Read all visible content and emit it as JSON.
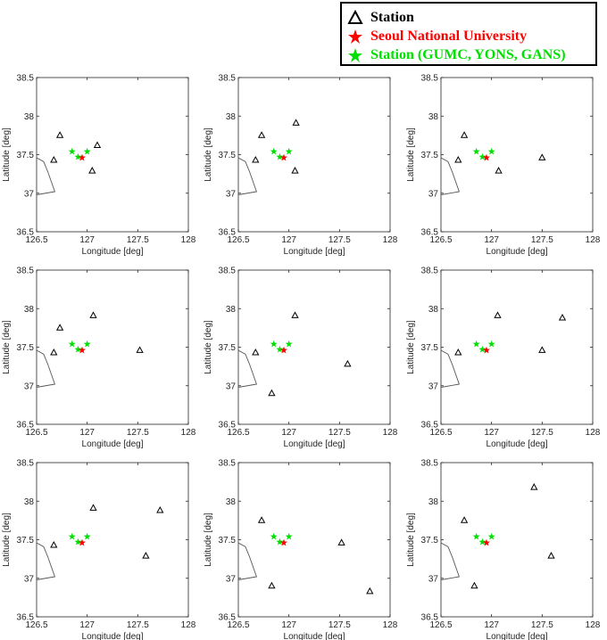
{
  "legend": [
    {
      "label": "Station",
      "marker": "triangle",
      "color": "#000000"
    },
    {
      "label": "Seoul National University",
      "marker": "star",
      "color": "#ff0000"
    },
    {
      "label": "Station (GUMC, YONS, GANS)",
      "marker": "star",
      "color": "#00e000"
    }
  ],
  "chart_data": [
    {
      "type": "scatter",
      "xlabel": "Longitude [deg]",
      "ylabel": "Latitude [deg]",
      "xlim": [
        126.5,
        128
      ],
      "ylim": [
        36.5,
        38.5
      ],
      "xticks": [
        "126.5",
        "127",
        "127.5",
        "128"
      ],
      "yticks": [
        "36.5",
        "37",
        "37.5",
        "38",
        "38.5"
      ],
      "stations": [
        [
          126.73,
          37.75
        ],
        [
          126.67,
          37.43
        ],
        [
          127.1,
          37.62
        ],
        [
          127.05,
          37.29
        ]
      ],
      "snu": [
        [
          126.95,
          37.46
        ]
      ],
      "green": [
        [
          126.85,
          37.54
        ],
        [
          126.91,
          37.47
        ],
        [
          127.0,
          37.54
        ]
      ]
    },
    {
      "type": "scatter",
      "xlabel": "Longitude [deg]",
      "ylabel": "Latitude [deg]",
      "xlim": [
        126.5,
        128
      ],
      "ylim": [
        36.5,
        38.5
      ],
      "xticks": [
        "126.5",
        "127",
        "127.5",
        "128"
      ],
      "yticks": [
        "36.5",
        "37",
        "37.5",
        "38",
        "38.5"
      ],
      "stations": [
        [
          126.73,
          37.75
        ],
        [
          126.67,
          37.43
        ],
        [
          127.07,
          37.91
        ],
        [
          127.06,
          37.29
        ]
      ],
      "snu": [
        [
          126.95,
          37.46
        ]
      ],
      "green": [
        [
          126.85,
          37.54
        ],
        [
          126.91,
          37.47
        ],
        [
          127.0,
          37.54
        ]
      ]
    },
    {
      "type": "scatter",
      "xlabel": "Longitude [deg]",
      "ylabel": "Latitude [deg]",
      "xlim": [
        126.5,
        128
      ],
      "ylim": [
        36.5,
        38.5
      ],
      "xticks": [
        "126.5",
        "127",
        "127.5",
        "128"
      ],
      "yticks": [
        "36.5",
        "37",
        "37.5",
        "38",
        "38.5"
      ],
      "stations": [
        [
          126.73,
          37.75
        ],
        [
          126.67,
          37.43
        ],
        [
          127.07,
          37.29
        ],
        [
          127.5,
          37.46
        ]
      ],
      "snu": [
        [
          126.95,
          37.46
        ]
      ],
      "green": [
        [
          126.85,
          37.54
        ],
        [
          126.91,
          37.47
        ],
        [
          127.0,
          37.54
        ]
      ]
    },
    {
      "type": "scatter",
      "xlabel": "Longitude [deg]",
      "ylabel": "Latitude [deg]",
      "xlim": [
        126.5,
        128
      ],
      "ylim": [
        36.5,
        38.5
      ],
      "xticks": [
        "126.5",
        "127",
        "127.5",
        "128"
      ],
      "yticks": [
        "36.5",
        "37",
        "37.5",
        "38",
        "38.5"
      ],
      "stations": [
        [
          126.73,
          37.75
        ],
        [
          126.67,
          37.43
        ],
        [
          127.06,
          37.91
        ],
        [
          127.52,
          37.46
        ]
      ],
      "snu": [
        [
          126.95,
          37.46
        ]
      ],
      "green": [
        [
          126.85,
          37.54
        ],
        [
          126.91,
          37.47
        ],
        [
          127.0,
          37.54
        ]
      ]
    },
    {
      "type": "scatter",
      "xlabel": "Longitude [deg]",
      "ylabel": "Latitude [deg]",
      "xlim": [
        126.5,
        128
      ],
      "ylim": [
        36.5,
        38.5
      ],
      "xticks": [
        "126.5",
        "127",
        "127.5",
        "128"
      ],
      "yticks": [
        "36.5",
        "37",
        "37.5",
        "38",
        "38.5"
      ],
      "stations": [
        [
          126.67,
          37.43
        ],
        [
          127.06,
          37.91
        ],
        [
          126.83,
          36.9
        ],
        [
          127.58,
          37.28
        ]
      ],
      "snu": [
        [
          126.95,
          37.46
        ]
      ],
      "green": [
        [
          126.85,
          37.54
        ],
        [
          126.91,
          37.47
        ],
        [
          127.0,
          37.54
        ]
      ]
    },
    {
      "type": "scatter",
      "xlabel": "Longitude [deg]",
      "ylabel": "Latitude [deg]",
      "xlim": [
        126.5,
        128
      ],
      "ylim": [
        36.5,
        38.5
      ],
      "xticks": [
        "126.5",
        "127",
        "127.5",
        "128"
      ],
      "yticks": [
        "36.5",
        "37",
        "37.5",
        "38",
        "38.5"
      ],
      "stations": [
        [
          126.67,
          37.43
        ],
        [
          127.06,
          37.91
        ],
        [
          127.7,
          37.88
        ],
        [
          127.5,
          37.46
        ]
      ],
      "snu": [
        [
          126.95,
          37.46
        ]
      ],
      "green": [
        [
          126.85,
          37.54
        ],
        [
          126.91,
          37.47
        ],
        [
          127.0,
          37.54
        ]
      ]
    },
    {
      "type": "scatter",
      "xlabel": "Longitude [deg]",
      "ylabel": "Latitude [deg]",
      "xlim": [
        126.5,
        128
      ],
      "ylim": [
        36.5,
        38.5
      ],
      "xticks": [
        "126.5",
        "127",
        "127.5",
        "128"
      ],
      "yticks": [
        "36.5",
        "37",
        "37.5",
        "38",
        "38.5"
      ],
      "stations": [
        [
          126.67,
          37.43
        ],
        [
          127.06,
          37.91
        ],
        [
          127.72,
          37.88
        ],
        [
          127.58,
          37.29
        ]
      ],
      "snu": [
        [
          126.95,
          37.46
        ]
      ],
      "green": [
        [
          126.85,
          37.54
        ],
        [
          126.91,
          37.47
        ],
        [
          127.0,
          37.54
        ]
      ]
    },
    {
      "type": "scatter",
      "xlabel": "Longitude [deg]",
      "ylabel": "Latitude [deg]",
      "xlim": [
        126.5,
        128
      ],
      "ylim": [
        36.5,
        38.5
      ],
      "xticks": [
        "126.5",
        "127",
        "127.5",
        "128"
      ],
      "yticks": [
        "36.5",
        "37",
        "37.5",
        "38",
        "38.5"
      ],
      "stations": [
        [
          126.73,
          37.75
        ],
        [
          126.83,
          36.9
        ],
        [
          127.52,
          37.46
        ],
        [
          127.8,
          36.83
        ]
      ],
      "snu": [
        [
          126.95,
          37.46
        ]
      ],
      "green": [
        [
          126.85,
          37.54
        ],
        [
          126.91,
          37.47
        ],
        [
          127.0,
          37.54
        ]
      ]
    },
    {
      "type": "scatter",
      "xlabel": "Longitude [deg]",
      "ylabel": "Latitude [deg]",
      "xlim": [
        126.5,
        128
      ],
      "ylim": [
        36.5,
        38.5
      ],
      "xticks": [
        "126.5",
        "127",
        "127.5",
        "128"
      ],
      "yticks": [
        "36.5",
        "37",
        "37.5",
        "38",
        "38.5"
      ],
      "stations": [
        [
          126.73,
          37.75
        ],
        [
          126.83,
          36.9
        ],
        [
          127.42,
          38.18
        ],
        [
          127.59,
          37.29
        ]
      ],
      "snu": [
        [
          126.95,
          37.46
        ]
      ],
      "green": [
        [
          126.85,
          37.54
        ],
        [
          126.91,
          37.47
        ],
        [
          127.0,
          37.54
        ]
      ]
    }
  ]
}
